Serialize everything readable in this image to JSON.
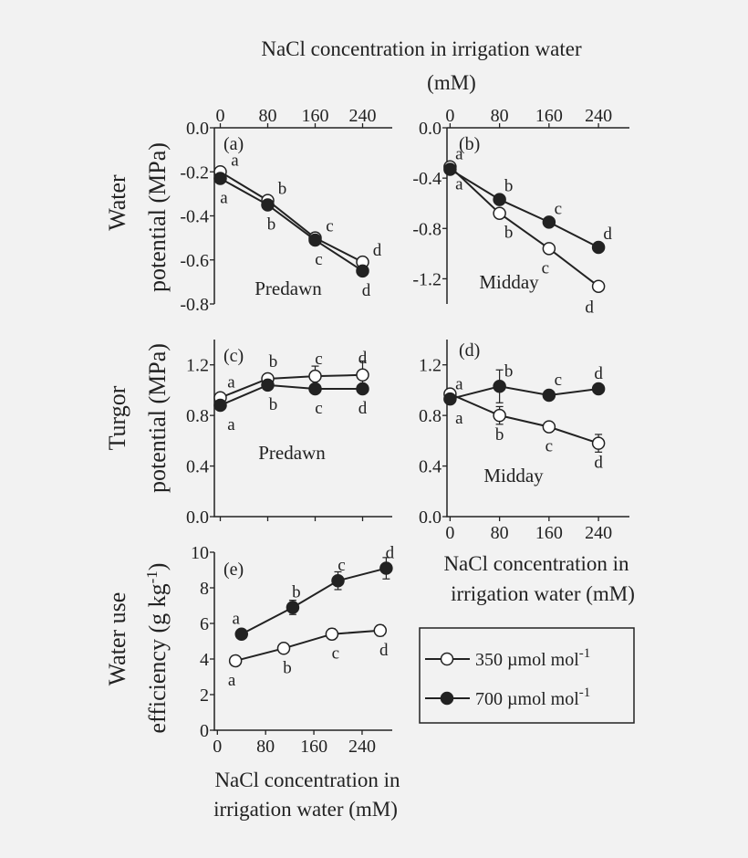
{
  "colors": {
    "background": "#f2f2f2",
    "ink": "#222222",
    "open_marker": "#ffffff",
    "filled_marker": "#222222"
  },
  "figure": {
    "top_title_line1": "NaCl concentration in irrigation water",
    "top_title_line2": "(mM)",
    "row_titles": {
      "water_potential": [
        "Water",
        "potential (MPa)"
      ],
      "turgor_potential": [
        "Turgor",
        "potential (MPa)"
      ],
      "wue": [
        "Water use",
        "efficiency (g kg"
      ]
    },
    "wue_superscript": "-1",
    "wue_close": ")",
    "bottom_title_line1": "NaCl concentration in",
    "bottom_title_line2": "irrigation water (mM)",
    "right_title_line1": "NaCl concentration in",
    "right_title_line2": "irrigation water (mM)"
  },
  "legend": {
    "entries": [
      {
        "label": "350 µmol mol",
        "sup": "-1",
        "fill": "open"
      },
      {
        "label": "700 µmol mol",
        "sup": "-1",
        "fill": "filled"
      }
    ]
  },
  "chart_data": [
    {
      "panel": "(a)",
      "type": "line",
      "annotation": "Predawn",
      "x_ticks": [
        "0",
        "80",
        "160",
        "240"
      ],
      "xlim": [
        -10,
        290
      ],
      "y_ticks": [
        "0.0",
        "-0.2",
        "-0.4",
        "-0.6",
        "-0.8"
      ],
      "ylim": [
        -0.8,
        0
      ],
      "series": [
        {
          "name": "350 µmol mol-1",
          "fill": "open",
          "x": [
            0,
            80,
            160,
            240
          ],
          "y": [
            -0.2,
            -0.33,
            -0.5,
            -0.61
          ],
          "err": [
            0.01,
            0.01,
            0.01,
            0.01
          ],
          "letters": [
            "a",
            "b",
            "c",
            "d"
          ]
        },
        {
          "name": "700 µmol mol-1",
          "fill": "filled",
          "x": [
            0,
            80,
            160,
            240
          ],
          "y": [
            -0.23,
            -0.35,
            -0.51,
            -0.65
          ],
          "err": [
            0.01,
            0.01,
            0.01,
            0.01
          ],
          "letters": [
            "a",
            "b",
            "c",
            "d"
          ]
        }
      ]
    },
    {
      "panel": "(b)",
      "type": "line",
      "annotation": "Midday",
      "x_ticks": [
        "0",
        "80",
        "160",
        "240"
      ],
      "xlim": [
        -5,
        290
      ],
      "y_ticks": [
        "0.0",
        "-0.4",
        "-0.8",
        "-1.2"
      ],
      "ylim": [
        -1.4,
        0
      ],
      "series": [
        {
          "name": "350 µmol mol-1",
          "fill": "open",
          "x": [
            0,
            80,
            160,
            240
          ],
          "y": [
            -0.31,
            -0.68,
            -0.96,
            -1.26
          ],
          "err": [
            0.01,
            0.02,
            0.02,
            0.02
          ],
          "letters": [
            "a",
            "b",
            "c",
            "d"
          ]
        },
        {
          "name": "700 µmol mol-1",
          "fill": "filled",
          "x": [
            0,
            80,
            160,
            240
          ],
          "y": [
            -0.33,
            -0.57,
            -0.75,
            -0.95
          ],
          "err": [
            0.01,
            0.01,
            0.01,
            0.01
          ],
          "letters": [
            "a",
            "b",
            "c",
            "d"
          ]
        }
      ]
    },
    {
      "panel": "(c)",
      "type": "line",
      "annotation": "Predawn",
      "x_ticks": [],
      "xlim": [
        -10,
        290
      ],
      "y_ticks": [
        "0.0",
        "0.4",
        "0.8",
        "1.2"
      ],
      "ylim": [
        0,
        1.4
      ],
      "series": [
        {
          "name": "350 µmol mol-1",
          "fill": "open",
          "x": [
            0,
            80,
            160,
            240
          ],
          "y": [
            0.94,
            1.09,
            1.11,
            1.12
          ],
          "err": [
            0.03,
            0.03,
            0.08,
            0.11
          ],
          "letters": [
            "a",
            "b",
            "c",
            "d"
          ]
        },
        {
          "name": "700 µmol mol-1",
          "fill": "filled",
          "x": [
            0,
            80,
            160,
            240
          ],
          "y": [
            0.88,
            1.04,
            1.01,
            1.01
          ],
          "err": [
            0.02,
            0.02,
            0.02,
            0.02
          ],
          "letters": [
            "a",
            "b",
            "c",
            "d"
          ]
        }
      ]
    },
    {
      "panel": "(d)",
      "type": "line",
      "annotation": "Midday",
      "x_ticks": [
        "0",
        "80",
        "160",
        "240"
      ],
      "xlim": [
        -5,
        290
      ],
      "y_ticks": [
        "0.0",
        "0.4",
        "0.8",
        "1.2"
      ],
      "ylim": [
        0,
        1.4
      ],
      "series": [
        {
          "name": "350 µmol mol-1",
          "fill": "open",
          "x": [
            0,
            80,
            160,
            240
          ],
          "y": [
            0.97,
            0.8,
            0.71,
            0.58
          ],
          "err": [
            0.04,
            0.07,
            0.04,
            0.07
          ],
          "letters": [
            "a",
            "b",
            "c",
            "d"
          ]
        },
        {
          "name": "700 µmol mol-1",
          "fill": "filled",
          "x": [
            0,
            80,
            160,
            240
          ],
          "y": [
            0.93,
            1.03,
            0.96,
            1.01
          ],
          "err": [
            0.04,
            0.13,
            0.02,
            0.02
          ],
          "letters": [
            "a",
            "b",
            "c",
            "d"
          ]
        }
      ]
    },
    {
      "panel": "(e)",
      "type": "line",
      "annotation": "",
      "x_ticks": [
        "0",
        "80",
        "160",
        "240"
      ],
      "xlim": [
        -5,
        290
      ],
      "y_ticks": [
        "0",
        "2",
        "4",
        "6",
        "8",
        "10"
      ],
      "ylim": [
        0,
        10
      ],
      "series": [
        {
          "name": "350 µmol mol-1",
          "fill": "open",
          "x": [
            30,
            110,
            190,
            270
          ],
          "y": [
            3.9,
            4.6,
            5.4,
            5.6
          ],
          "err": [
            0.15,
            0.2,
            0.3,
            0.3
          ],
          "letters": [
            "a",
            "b",
            "c",
            "d"
          ]
        },
        {
          "name": "700 µmol mol-1",
          "fill": "filled",
          "x": [
            40,
            125,
            200,
            280
          ],
          "y": [
            5.4,
            6.9,
            8.4,
            9.1
          ],
          "err": [
            0.2,
            0.4,
            0.5,
            0.6
          ],
          "letters": [
            "a",
            "b",
            "c",
            "d"
          ]
        }
      ]
    }
  ]
}
